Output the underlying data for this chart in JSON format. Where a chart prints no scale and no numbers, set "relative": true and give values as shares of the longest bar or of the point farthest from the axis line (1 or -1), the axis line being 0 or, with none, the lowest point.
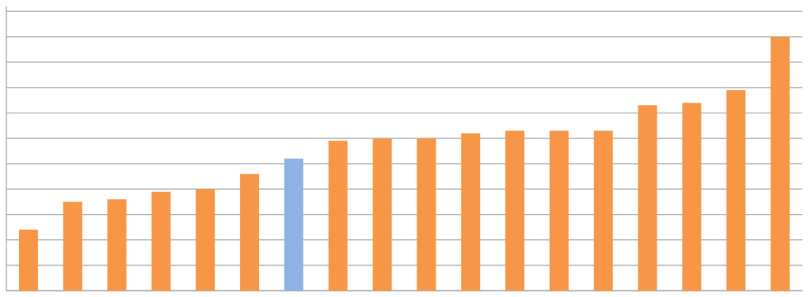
{
  "chart_data": {
    "type": "bar",
    "relative": true,
    "grid": "y",
    "categories": [
      null,
      null,
      null,
      null,
      null,
      null,
      null,
      null,
      null,
      null,
      null,
      null,
      null,
      null,
      null,
      null,
      null,
      null
    ],
    "values": [
      0.24,
      0.35,
      0.36,
      0.39,
      0.4,
      0.46,
      0.52,
      0.59,
      0.6,
      0.6,
      0.62,
      0.63,
      0.63,
      0.63,
      0.73,
      0.74,
      0.79,
      1
    ],
    "colors": [
      "#f79646",
      "#f79646",
      "#f79646",
      "#f79646",
      "#f79646",
      "#f79646",
      "#8db3e2",
      "#f79646",
      "#f79646",
      "#f79646",
      "#f79646",
      "#f79646",
      "#f79646",
      "#f79646",
      "#f79646",
      "#f79646",
      "#f79646",
      "#f79646"
    ]
  }
}
